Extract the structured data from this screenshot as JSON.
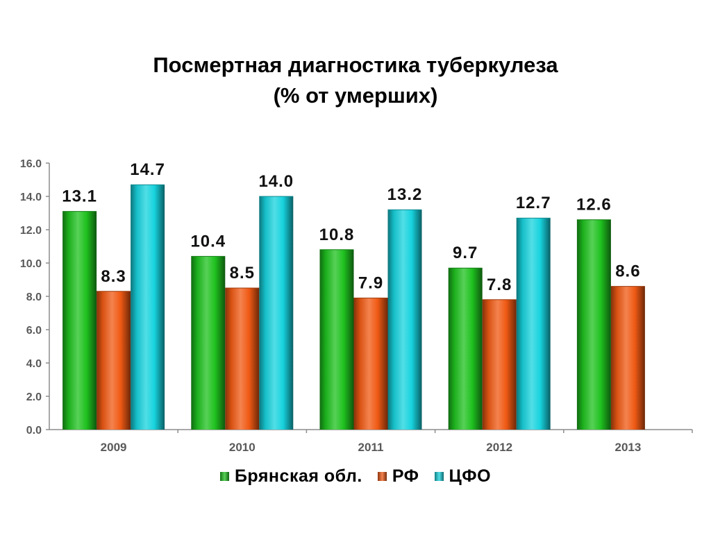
{
  "title_line1": "Посмертная диагностика туберкулеза",
  "title_line2": "(% от умерших)",
  "chart_data": {
    "type": "bar",
    "categories": [
      "2009",
      "2010",
      "2011",
      "2012",
      "2013"
    ],
    "series": [
      {
        "name": "Брянская обл.",
        "color": "#1fc21f",
        "values": [
          13.1,
          10.4,
          10.8,
          9.7,
          12.6
        ],
        "labels": [
          "13.1",
          "10.4",
          "10.8",
          "9.7",
          "12.6"
        ]
      },
      {
        "name": "РФ",
        "color": "#f05a14",
        "values": [
          8.3,
          8.5,
          7.9,
          7.8,
          8.6
        ],
        "labels": [
          "8.3",
          "8.5",
          "7.9",
          "7.8",
          "8.6"
        ]
      },
      {
        "name": "ЦФО",
        "color": "#17d3de",
        "values": [
          14.7,
          14.0,
          13.2,
          12.7,
          null
        ],
        "labels": [
          "14.7",
          "14.0",
          "13.2",
          "12.7",
          ""
        ]
      }
    ],
    "yticks": [
      "0.0",
      "2.0",
      "4.0",
      "6.0",
      "8.0",
      "10.0",
      "12.0",
      "14.0",
      "16.0"
    ],
    "ylim": [
      0,
      16
    ],
    "grid": false,
    "legend_position": "bottom"
  }
}
